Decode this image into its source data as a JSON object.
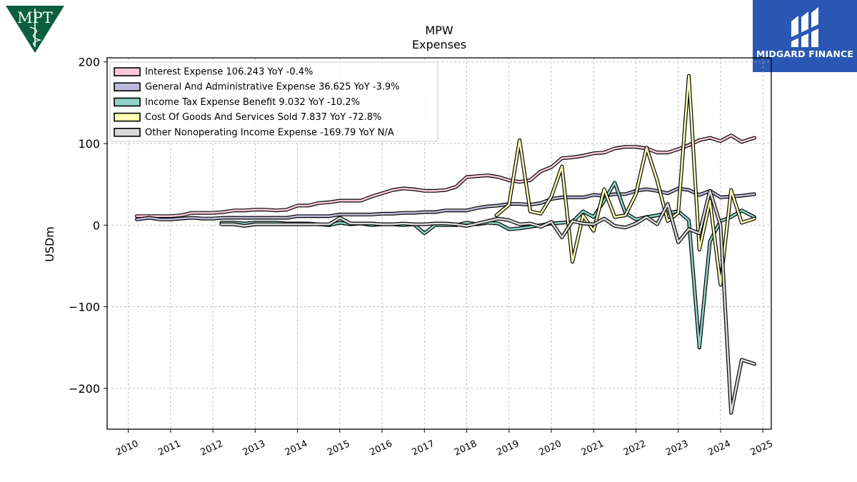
{
  "logos": {
    "left_text": "MPT",
    "right_text": "MIDGARD FINANCE"
  },
  "colors": {
    "interest": "#fbc8dc",
    "ga": "#bab9da",
    "tax": "#8dd3c7",
    "cogs": "#ffffb3",
    "other": "#d9d9d9",
    "logo_green": "#0b5e3f",
    "logo_blue": "#2a57b3"
  },
  "chart_data": {
    "type": "line",
    "title": "MPW",
    "subtitle": "Expenses",
    "ylabel": "USDm",
    "xlabel": "",
    "xlim": [
      2009.5,
      2025.2
    ],
    "ylim": [
      -250,
      205
    ],
    "yticks": [
      -200,
      -100,
      0,
      100,
      200
    ],
    "ytick_labels": [
      "−200",
      "−100",
      "0",
      "100",
      "200"
    ],
    "xticks": [
      2010,
      2011,
      2012,
      2013,
      2014,
      2015,
      2016,
      2017,
      2018,
      2019,
      2020,
      2021,
      2022,
      2023,
      2024,
      2025
    ],
    "xtick_labels": [
      "2010",
      "2011",
      "2012",
      "2013",
      "2014",
      "2015",
      "2016",
      "2017",
      "2018",
      "2019",
      "2020",
      "2021",
      "2022",
      "2023",
      "2024",
      "2025"
    ],
    "grid": true,
    "legend_position": "top-left",
    "series": [
      {
        "key": "interest",
        "name": "Interest Expense  106.243 YoY -0.4%",
        "points": [
          [
            2010.2,
            11
          ],
          [
            2010.5,
            11
          ],
          [
            2010.75,
            11
          ],
          [
            2011.0,
            11
          ],
          [
            2011.25,
            12
          ],
          [
            2011.5,
            15
          ],
          [
            2011.75,
            15
          ],
          [
            2012.0,
            15
          ],
          [
            2012.25,
            16
          ],
          [
            2012.5,
            18
          ],
          [
            2012.75,
            18
          ],
          [
            2013.0,
            19
          ],
          [
            2013.25,
            19
          ],
          [
            2013.5,
            18
          ],
          [
            2013.75,
            19
          ],
          [
            2014.0,
            24
          ],
          [
            2014.25,
            24
          ],
          [
            2014.5,
            27
          ],
          [
            2014.75,
            28
          ],
          [
            2015.0,
            30
          ],
          [
            2015.25,
            30
          ],
          [
            2015.5,
            30
          ],
          [
            2015.75,
            35
          ],
          [
            2016.0,
            39
          ],
          [
            2016.25,
            43
          ],
          [
            2016.5,
            45
          ],
          [
            2016.75,
            44
          ],
          [
            2017.0,
            42
          ],
          [
            2017.25,
            42
          ],
          [
            2017.5,
            43
          ],
          [
            2017.75,
            47
          ],
          [
            2018.0,
            59
          ],
          [
            2018.25,
            60
          ],
          [
            2018.5,
            61
          ],
          [
            2018.75,
            59
          ],
          [
            2019.0,
            55
          ],
          [
            2019.25,
            53
          ],
          [
            2019.5,
            55
          ],
          [
            2019.75,
            66
          ],
          [
            2020.0,
            71
          ],
          [
            2020.25,
            82
          ],
          [
            2020.5,
            83
          ],
          [
            2020.75,
            85
          ],
          [
            2021.0,
            88
          ],
          [
            2021.25,
            89
          ],
          [
            2021.5,
            94
          ],
          [
            2021.75,
            96
          ],
          [
            2022.0,
            96
          ],
          [
            2022.25,
            94
          ],
          [
            2022.5,
            89
          ],
          [
            2022.75,
            89
          ],
          [
            2023.0,
            93
          ],
          [
            2023.25,
            98
          ],
          [
            2023.5,
            104
          ],
          [
            2023.75,
            107
          ],
          [
            2024.0,
            103
          ],
          [
            2024.25,
            110
          ],
          [
            2024.5,
            102
          ],
          [
            2024.8,
            107
          ]
        ]
      },
      {
        "key": "ga",
        "name": "General And Administrative Expense  36.625 YoY -3.9%",
        "points": [
          [
            2010.2,
            7
          ],
          [
            2010.5,
            9
          ],
          [
            2010.75,
            7
          ],
          [
            2011.0,
            7
          ],
          [
            2011.25,
            8
          ],
          [
            2011.5,
            9
          ],
          [
            2011.75,
            8
          ],
          [
            2012.0,
            8
          ],
          [
            2012.25,
            9
          ],
          [
            2012.5,
            9
          ],
          [
            2012.75,
            9
          ],
          [
            2013.0,
            9
          ],
          [
            2013.25,
            9
          ],
          [
            2013.5,
            9
          ],
          [
            2013.75,
            9
          ],
          [
            2014.0,
            11
          ],
          [
            2014.25,
            11
          ],
          [
            2014.5,
            11
          ],
          [
            2014.75,
            11
          ],
          [
            2015.0,
            13
          ],
          [
            2015.25,
            13
          ],
          [
            2015.5,
            13
          ],
          [
            2015.75,
            13
          ],
          [
            2016.0,
            14
          ],
          [
            2016.25,
            14
          ],
          [
            2016.5,
            15
          ],
          [
            2016.75,
            15
          ],
          [
            2017.0,
            16
          ],
          [
            2017.25,
            16
          ],
          [
            2017.5,
            18
          ],
          [
            2017.75,
            18
          ],
          [
            2018.0,
            18
          ],
          [
            2018.25,
            21
          ],
          [
            2018.5,
            23
          ],
          [
            2018.75,
            24
          ],
          [
            2019.0,
            26
          ],
          [
            2019.25,
            26
          ],
          [
            2019.5,
            25
          ],
          [
            2019.75,
            27
          ],
          [
            2020.0,
            32
          ],
          [
            2020.25,
            34
          ],
          [
            2020.5,
            34
          ],
          [
            2020.75,
            34
          ],
          [
            2021.0,
            37
          ],
          [
            2021.25,
            36
          ],
          [
            2021.5,
            38
          ],
          [
            2021.75,
            38
          ],
          [
            2022.0,
            42
          ],
          [
            2022.25,
            44
          ],
          [
            2022.5,
            42
          ],
          [
            2022.75,
            39
          ],
          [
            2023.0,
            45
          ],
          [
            2023.25,
            43
          ],
          [
            2023.5,
            37
          ],
          [
            2023.75,
            42
          ],
          [
            2024.0,
            34
          ],
          [
            2024.25,
            35
          ],
          [
            2024.5,
            36
          ],
          [
            2024.8,
            38
          ]
        ]
      },
      {
        "key": "tax",
        "name": "Income Tax Expense Benefit  9.032 YoY -10.2%",
        "points": [
          [
            2012.2,
            3
          ],
          [
            2012.5,
            3
          ],
          [
            2012.75,
            2
          ],
          [
            2013.0,
            3
          ],
          [
            2013.25,
            3
          ],
          [
            2013.5,
            3
          ],
          [
            2013.75,
            2
          ],
          [
            2014.0,
            2
          ],
          [
            2014.25,
            2
          ],
          [
            2014.5,
            1
          ],
          [
            2014.75,
            0
          ],
          [
            2015.0,
            3
          ],
          [
            2015.25,
            1
          ],
          [
            2015.5,
            2
          ],
          [
            2015.75,
            0
          ],
          [
            2016.0,
            1
          ],
          [
            2016.25,
            1
          ],
          [
            2016.5,
            0
          ],
          [
            2016.75,
            1
          ],
          [
            2017.0,
            -10
          ],
          [
            2017.25,
            0
          ],
          [
            2017.5,
            0
          ],
          [
            2017.75,
            0
          ],
          [
            2018.0,
            3
          ],
          [
            2018.25,
            1
          ],
          [
            2018.5,
            3
          ],
          [
            2018.75,
            2
          ],
          [
            2019.0,
            -5
          ],
          [
            2019.25,
            -4
          ],
          [
            2019.5,
            -2
          ],
          [
            2019.75,
            0
          ],
          [
            2020.0,
            2
          ],
          [
            2020.25,
            3
          ],
          [
            2020.5,
            4
          ],
          [
            2020.75,
            17
          ],
          [
            2021.0,
            10
          ],
          [
            2021.25,
            30
          ],
          [
            2021.5,
            52
          ],
          [
            2021.75,
            15
          ],
          [
            2022.0,
            7
          ],
          [
            2022.25,
            10
          ],
          [
            2022.5,
            12
          ],
          [
            2022.75,
            15
          ],
          [
            2023.0,
            17
          ],
          [
            2023.25,
            6
          ],
          [
            2023.5,
            -150
          ],
          [
            2023.75,
            -20
          ],
          [
            2024.0,
            5
          ],
          [
            2024.25,
            10
          ],
          [
            2024.5,
            18
          ],
          [
            2024.8,
            10
          ]
        ]
      },
      {
        "key": "cogs",
        "name": "Cost Of Goods And Services Sold  7.837 YoY -72.8%",
        "points": [
          [
            2018.7,
            12
          ],
          [
            2019.0,
            25
          ],
          [
            2019.25,
            104
          ],
          [
            2019.5,
            17
          ],
          [
            2019.75,
            14
          ],
          [
            2020.0,
            35
          ],
          [
            2020.25,
            72
          ],
          [
            2020.5,
            -45
          ],
          [
            2020.75,
            12
          ],
          [
            2021.0,
            -7
          ],
          [
            2021.25,
            44
          ],
          [
            2021.5,
            10
          ],
          [
            2021.75,
            12
          ],
          [
            2022.0,
            38
          ],
          [
            2022.25,
            95
          ],
          [
            2022.5,
            55
          ],
          [
            2022.75,
            5
          ],
          [
            2023.0,
            15
          ],
          [
            2023.25,
            183
          ],
          [
            2023.5,
            -30
          ],
          [
            2023.75,
            30
          ],
          [
            2024.0,
            -73
          ],
          [
            2024.25,
            43
          ],
          [
            2024.5,
            3
          ],
          [
            2024.8,
            8
          ]
        ]
      },
      {
        "key": "other",
        "name": "Other Nonoperating Income Expense  -169.79 YoY N/A",
        "points": [
          [
            2012.2,
            1
          ],
          [
            2012.5,
            1
          ],
          [
            2012.75,
            -1
          ],
          [
            2013.0,
            1
          ],
          [
            2013.25,
            1
          ],
          [
            2013.5,
            1
          ],
          [
            2013.75,
            1
          ],
          [
            2014.0,
            1
          ],
          [
            2014.25,
            1
          ],
          [
            2014.5,
            1
          ],
          [
            2014.75,
            1
          ],
          [
            2015.0,
            9
          ],
          [
            2015.25,
            2
          ],
          [
            2015.5,
            2
          ],
          [
            2015.75,
            2
          ],
          [
            2016.0,
            1
          ],
          [
            2016.25,
            1
          ],
          [
            2016.5,
            2
          ],
          [
            2016.75,
            1
          ],
          [
            2017.0,
            1
          ],
          [
            2017.25,
            2
          ],
          [
            2017.5,
            2
          ],
          [
            2017.75,
            1
          ],
          [
            2018.0,
            -1
          ],
          [
            2018.25,
            2
          ],
          [
            2018.5,
            5
          ],
          [
            2018.75,
            8
          ],
          [
            2019.0,
            6
          ],
          [
            2019.25,
            1
          ],
          [
            2019.5,
            2
          ],
          [
            2019.75,
            -2
          ],
          [
            2020.0,
            4
          ],
          [
            2020.25,
            -15
          ],
          [
            2020.5,
            5
          ],
          [
            2020.75,
            2
          ],
          [
            2021.0,
            1
          ],
          [
            2021.25,
            8
          ],
          [
            2021.5,
            -1
          ],
          [
            2021.75,
            -3
          ],
          [
            2022.0,
            2
          ],
          [
            2022.25,
            10
          ],
          [
            2022.5,
            1
          ],
          [
            2022.75,
            26
          ],
          [
            2023.0,
            -21
          ],
          [
            2023.25,
            -5
          ],
          [
            2023.5,
            -10
          ],
          [
            2023.75,
            42
          ],
          [
            2024.0,
            0
          ],
          [
            2024.25,
            -230
          ],
          [
            2024.5,
            -165
          ],
          [
            2024.8,
            -170
          ]
        ]
      }
    ]
  }
}
